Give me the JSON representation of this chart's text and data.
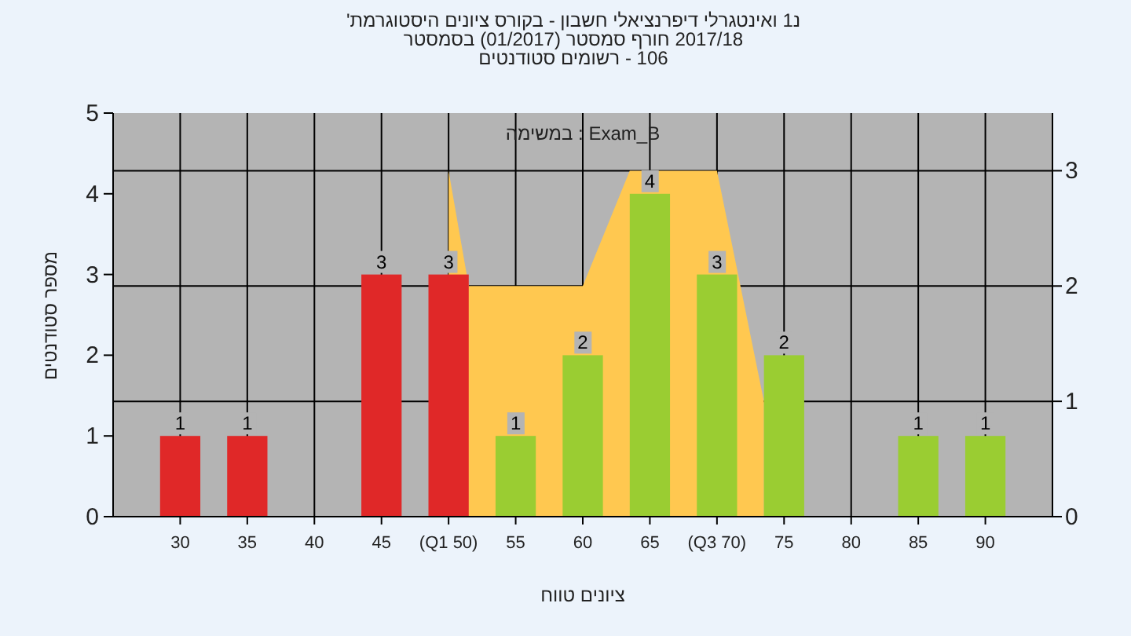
{
  "chart_data": {
    "type": "bar",
    "title": "'היסטוגרמת ציונים בקורס - חשבון דיפרנציאלי ואינטגרלי 1נ",
    "subtitle": "בסמסטר (01/2017) סמסטר חורף 2017/18\nסטודנטים רשומים - 106",
    "xlabel": "טווח ציונים",
    "ylabel": "מספר סטודנטים",
    "annotations": [
      "במשימה : Exam_B"
    ],
    "x": [
      30,
      35,
      45,
      50,
      55,
      60,
      65,
      70,
      75,
      85,
      90
    ],
    "values": [
      1,
      1,
      3,
      3,
      1,
      2,
      4,
      3,
      2,
      1,
      1
    ],
    "colors": [
      "#e02828",
      "#e02828",
      "#e02828",
      "#e02828",
      "#9acd32",
      "#9acd32",
      "#9acd32",
      "#9acd32",
      "#9acd32",
      "#9acd32",
      "#9acd32"
    ],
    "series": [
      {
        "type": "area",
        "axis": "y2",
        "color": "#ffc850",
        "x": [
          50,
          51.5,
          60,
          63.5,
          70,
          73.5
        ],
        "values": [
          3,
          2,
          2,
          3,
          3,
          1
        ],
        "value_labels": [
          null,
          null,
          null,
          null,
          null,
          null
        ]
      }
    ],
    "data_labels": true,
    "grid": true,
    "xlim": [
      25,
      95
    ],
    "xticks": [
      30,
      35,
      40,
      45,
      {
        "value": 50,
        "label": "(Q1 50)"
      },
      55,
      60,
      65,
      {
        "value": 70,
        "label": "(Q3 70)"
      },
      75,
      80,
      85,
      90
    ],
    "ylim": [
      0,
      5
    ],
    "yticks": [
      0,
      1,
      2,
      3,
      4,
      5
    ],
    "y2lim": [
      0,
      3.5
    ],
    "y2ticks": [
      0,
      1,
      2,
      3
    ]
  }
}
